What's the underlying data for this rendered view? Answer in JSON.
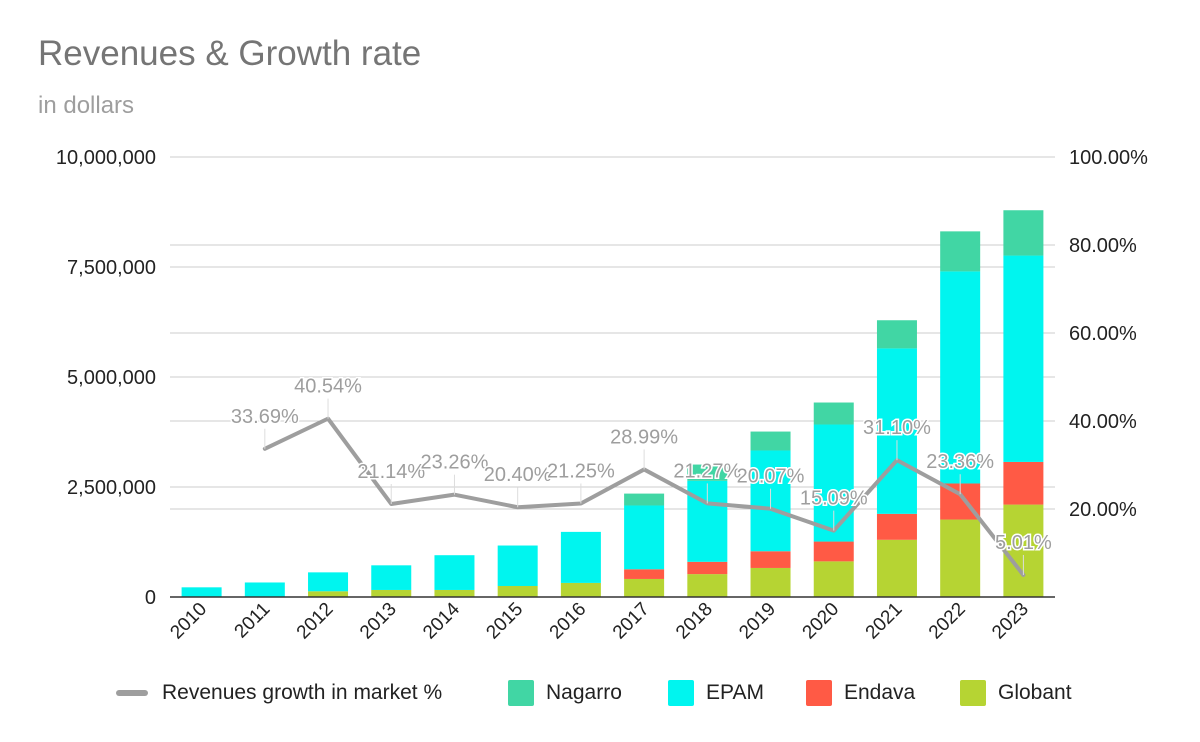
{
  "title": "Revenues & Growth rate",
  "subtitle": "in dollars",
  "chart_data": {
    "type": "bar",
    "stacked": true,
    "categories": [
      "2010",
      "2011",
      "2012",
      "2013",
      "2014",
      "2015",
      "2016",
      "2017",
      "2018",
      "2019",
      "2020",
      "2021",
      "2022",
      "2023"
    ],
    "series": [
      {
        "name": "Globant",
        "color": "#b6d433",
        "values": [
          0,
          0,
          130000,
          160000,
          160000,
          250000,
          320000,
          410000,
          520000,
          660000,
          810000,
          1300000,
          1760000,
          2100000
        ]
      },
      {
        "name": "Endava",
        "color": "#ff5a45",
        "values": [
          0,
          0,
          0,
          0,
          0,
          0,
          0,
          220000,
          280000,
          380000,
          450000,
          590000,
          820000,
          970000
        ]
      },
      {
        "name": "EPAM",
        "color": "#00f5ef",
        "values": [
          220000,
          330000,
          430000,
          560000,
          790000,
          920000,
          1160000,
          1450000,
          1840000,
          2290000,
          2660000,
          3760000,
          4820000,
          4690000
        ]
      },
      {
        "name": "Nagarro",
        "color": "#41d6a4",
        "values": [
          0,
          0,
          0,
          0,
          0,
          0,
          0,
          270000,
          370000,
          430000,
          500000,
          640000,
          910000,
          1030000
        ]
      }
    ],
    "line": {
      "name": "Revenues growth in market %",
      "color": "#9e9e9e",
      "values": [
        null,
        33.69,
        40.54,
        21.14,
        23.26,
        20.4,
        21.25,
        28.99,
        21.27,
        20.07,
        15.09,
        31.1,
        23.36,
        5.01
      ],
      "labels": [
        "",
        "33.69%",
        "40.54%",
        "21.14%",
        "23.26%",
        "20.40%",
        "21.25%",
        "28.99%",
        "21.27%",
        "20.07%",
        "15.09%",
        "31.10%",
        "23.36%",
        "5.01%"
      ]
    },
    "y_left": {
      "min": 0,
      "max": 10000000,
      "tick_values": [
        0,
        2500000,
        5000000,
        7500000,
        10000000
      ],
      "tick_labels": [
        "0",
        "2,500,000",
        "5,000,000",
        "7,500,000",
        "10,000,000"
      ]
    },
    "y_right": {
      "min": 0,
      "max": 100,
      "tick_values": [
        20,
        40,
        60,
        80,
        100
      ],
      "tick_labels": [
        "20.00%",
        "40.00%",
        "60.00%",
        "80.00%",
        "100.00%"
      ]
    },
    "grid": true,
    "legend_position": "bottom",
    "legend": [
      "Revenues growth in market %",
      "Nagarro",
      "EPAM",
      "Endava",
      "Globant"
    ]
  }
}
